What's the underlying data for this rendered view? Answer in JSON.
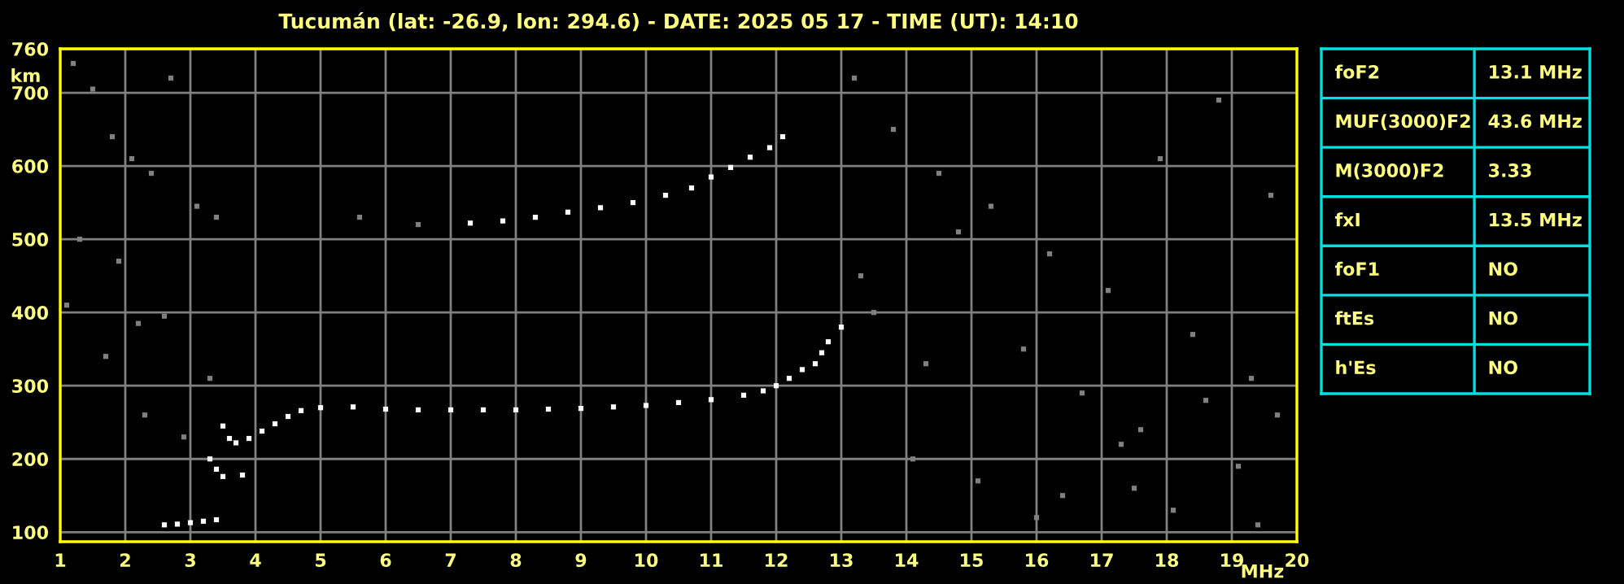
{
  "chart_data": [
    {
      "type": "scatter",
      "title": "Tucumán (lat: -26.9, lon: 294.6) - DATE: 2025 05 17 - TIME (UT): 14:10",
      "xlabel": "MHz",
      "ylabel": "km",
      "xlim": [
        1,
        20
      ],
      "xticks": [
        1,
        2,
        3,
        4,
        5,
        6,
        7,
        8,
        9,
        10,
        11,
        12,
        13,
        14,
        15,
        16,
        17,
        18,
        19,
        20
      ],
      "ylim": [
        87,
        760
      ],
      "yticks": [
        100,
        200,
        300,
        400,
        500,
        600,
        700,
        760
      ],
      "grid": true,
      "marker": "square",
      "legend": false,
      "series": [
        {
          "color": "#808080",
          "x": [
            1.2,
            1.5,
            1.8,
            2.1,
            2.4,
            2.7,
            3.1,
            3.4,
            1.3,
            1.9,
            2.2,
            2.6,
            1.1,
            1.7,
            2.3,
            2.9,
            3.3,
            5.6,
            6.5,
            13.2,
            13.8,
            14.5,
            15.3,
            16.2,
            17.1,
            17.9,
            18.8,
            19.6,
            13.5,
            14.3,
            15.8,
            16.7,
            17.6,
            18.4,
            19.3,
            14.1,
            15.1,
            16.4,
            17.3,
            18.1,
            19.1,
            19.7,
            13.3,
            14.8,
            16.0,
            17.5,
            18.6,
            19.4
          ],
          "values": [
            740,
            705,
            640,
            610,
            590,
            720,
            545,
            530,
            500,
            470,
            385,
            395,
            410,
            340,
            260,
            230,
            310,
            530,
            520,
            720,
            650,
            590,
            545,
            480,
            430,
            610,
            690,
            560,
            400,
            330,
            350,
            290,
            240,
            370,
            310,
            200,
            170,
            150,
            220,
            130,
            190,
            260,
            450,
            510,
            120,
            160,
            280,
            110
          ]
        },
        {
          "color": "#ffffff",
          "x": [
            2.6,
            2.8,
            3.0,
            3.2,
            3.4,
            3.3,
            3.4,
            3.5,
            3.8,
            3.5,
            3.6,
            3.7,
            3.9,
            4.1,
            4.3,
            4.5,
            4.7,
            5.0,
            5.5,
            6.0,
            6.5,
            7.0,
            7.5,
            8.0,
            8.5,
            9.0,
            9.5,
            10.0,
            10.5,
            11.0,
            11.5,
            11.8,
            12.0,
            12.2,
            12.4,
            12.6,
            12.7,
            12.8,
            13.0
          ],
          "values": [
            110,
            111,
            113,
            115,
            117,
            200,
            186,
            176,
            178,
            245,
            228,
            222,
            228,
            238,
            248,
            258,
            266,
            270,
            271,
            268,
            267,
            267,
            267,
            267,
            268,
            269,
            271,
            273,
            277,
            281,
            287,
            293,
            300,
            310,
            322,
            330,
            345,
            360,
            380
          ]
        },
        {
          "color": "#ffffff",
          "x": [
            7.3,
            7.8,
            8.3,
            8.8,
            9.3,
            9.8,
            10.3,
            10.7,
            11.0,
            11.3,
            11.6,
            11.9,
            12.1
          ],
          "values": [
            522,
            525,
            530,
            537,
            543,
            550,
            560,
            570,
            585,
            598,
            612,
            625,
            640
          ]
        }
      ]
    },
    {
      "type": "other",
      "annotations": [
        "foF2",
        "13.1 MHz",
        "MUF(3000)F2",
        "43.6 MHz",
        "M(3000)F2",
        "3.33",
        "fxI",
        "13.5 MHz",
        "foF1",
        "NO",
        "ftEs",
        "NO",
        "h'Es",
        "NO"
      ]
    }
  ]
}
